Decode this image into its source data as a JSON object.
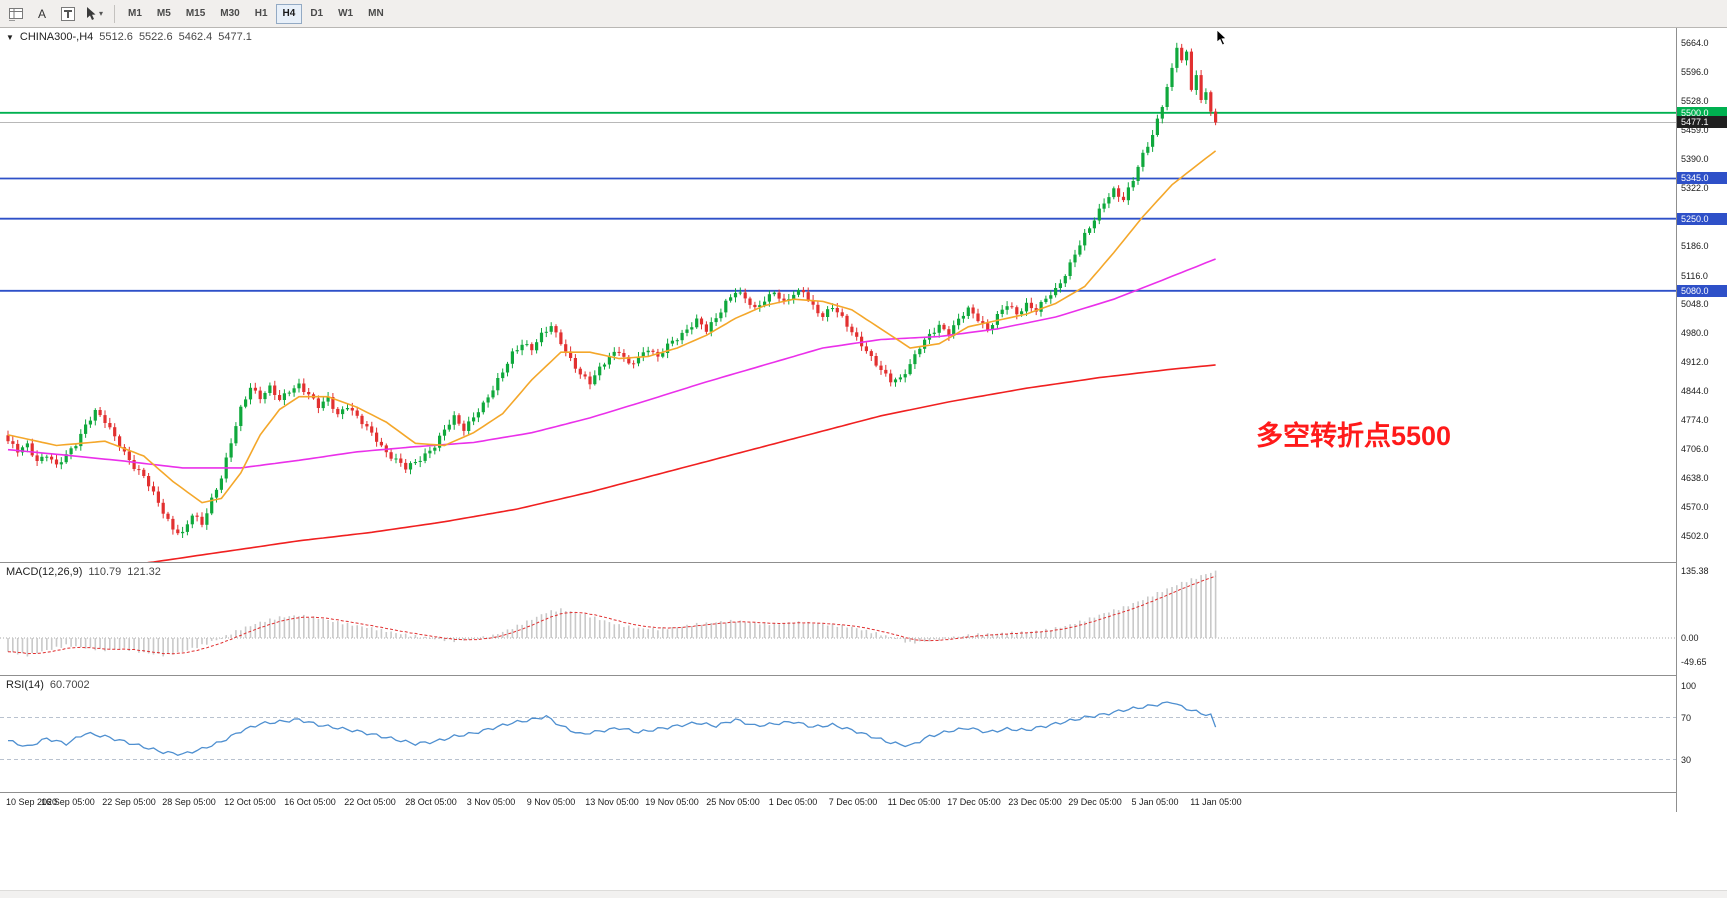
{
  "toolbar": {
    "icons": [
      {
        "name": "indicators-grid-icon"
      },
      {
        "name": "text-label-icon",
        "glyph": "A"
      },
      {
        "name": "text-frame-icon"
      },
      {
        "name": "cursor-tool-icon",
        "dropdown": "▾"
      }
    ],
    "timeframes": [
      "M1",
      "M5",
      "M15",
      "M30",
      "H1",
      "H4",
      "D1",
      "W1",
      "MN"
    ],
    "active_timeframe": "H4"
  },
  "main_chart": {
    "header": {
      "dropdown_icon": "▼",
      "symbol_period": "CHINA300-,H4",
      "open": "5512.6",
      "high": "5522.6",
      "low": "5462.4",
      "close": "5477.1"
    },
    "annotation": {
      "text": "多空转折点5500",
      "color": "#FF1A1A"
    }
  },
  "macd_panel": {
    "header_label": "MACD(12,26,9)",
    "value1": "110.79",
    "value2": "121.32"
  },
  "rsi_panel": {
    "header_label": "RSI(14)",
    "value": "60.7002"
  },
  "chart_data": {
    "type": "candlestick",
    "title": "CHINA300-,H4",
    "bars": 250,
    "price_range": [
      4440,
      5700
    ],
    "current_price": 5477.1,
    "last_ohlc": {
      "open": 5512.6,
      "high": 5522.6,
      "low": 5462.4,
      "close": 5477.1
    },
    "colors": {
      "up": "#0FA83C",
      "down": "#E23030",
      "ma_fast": "#F4A72A",
      "ma_mid": "#EA30EA",
      "ma_slow": "#F02020",
      "hline_green": "#00B050",
      "hline_blue": "#2E50C8",
      "macd_hist": "#C9C9C9",
      "macd_signal": "#E03030",
      "rsi_line": "#4E8FD0",
      "current_price_line": "#B8B8B8"
    },
    "hlines": [
      {
        "price": 5500.0,
        "color": "#00B050"
      },
      {
        "price": 5345.0,
        "color": "#2E50C8"
      },
      {
        "price": 5250.0,
        "color": "#2E50C8"
      },
      {
        "price": 5080.0,
        "color": "#2E50C8"
      }
    ],
    "y_ticks": [
      "5664.0",
      "5596.0",
      "5528.0",
      "5459.0",
      "5390.0",
      "5322.0",
      "5186.0",
      "5116.0",
      "5048.0",
      "4980.0",
      "4912.0",
      "4844.0",
      "4774.0",
      "4706.0",
      "4638.0",
      "4570.0",
      "4502.0"
    ],
    "y_badges": [
      {
        "label": "5500.0",
        "price": 5500.0,
        "bg": "#00B050"
      },
      {
        "label": "5477.1",
        "price": 5477.1,
        "bg": "#202020"
      },
      {
        "label": "5345.0",
        "price": 5345.0,
        "bg": "#2E50C8"
      },
      {
        "label": "5250.0",
        "price": 5250.0,
        "bg": "#2E50C8"
      },
      {
        "label": "5080.0",
        "price": 5080.0,
        "bg": "#2E50C8"
      }
    ],
    "x_labels": [
      "10 Sep 2020",
      "16 Sep 05:00",
      "22 Sep 05:00",
      "28 Sep 05:00",
      "12 Oct 05:00",
      "16 Oct 05:00",
      "22 Oct 05:00",
      "28 Oct 05:00",
      "3 Nov 05:00",
      "9 Nov 05:00",
      "13 Nov 05:00",
      "19 Nov 05:00",
      "25 Nov 05:00",
      "1 Dec 05:00",
      "7 Dec 05:00",
      "11 Dec 05:00",
      "17 Dec 05:00",
      "23 Dec 05:00",
      "29 Dec 05:00",
      "5 Jan 05:00",
      "11 Jan 05:00"
    ],
    "close_anchors": [
      [
        0,
        4725
      ],
      [
        2,
        4700
      ],
      [
        4,
        4715
      ],
      [
        6,
        4680
      ],
      [
        8,
        4695
      ],
      [
        10,
        4665
      ],
      [
        12,
        4690
      ],
      [
        14,
        4720
      ],
      [
        16,
        4765
      ],
      [
        18,
        4795
      ],
      [
        20,
        4770
      ],
      [
        22,
        4735
      ],
      [
        24,
        4700
      ],
      [
        26,
        4665
      ],
      [
        28,
        4640
      ],
      [
        30,
        4600
      ],
      [
        32,
        4560
      ],
      [
        34,
        4520
      ],
      [
        36,
        4505
      ],
      [
        38,
        4550
      ],
      [
        40,
        4530
      ],
      [
        42,
        4590
      ],
      [
        44,
        4640
      ],
      [
        46,
        4720
      ],
      [
        48,
        4800
      ],
      [
        50,
        4855
      ],
      [
        52,
        4830
      ],
      [
        54,
        4850
      ],
      [
        56,
        4820
      ],
      [
        58,
        4845
      ],
      [
        60,
        4860
      ],
      [
        62,
        4835
      ],
      [
        64,
        4805
      ],
      [
        66,
        4825
      ],
      [
        68,
        4790
      ],
      [
        70,
        4810
      ],
      [
        72,
        4780
      ],
      [
        74,
        4755
      ],
      [
        76,
        4730
      ],
      [
        78,
        4700
      ],
      [
        80,
        4680
      ],
      [
        82,
        4660
      ],
      [
        84,
        4675
      ],
      [
        86,
        4695
      ],
      [
        88,
        4715
      ],
      [
        90,
        4750
      ],
      [
        92,
        4780
      ],
      [
        94,
        4755
      ],
      [
        96,
        4785
      ],
      [
        98,
        4810
      ],
      [
        100,
        4845
      ],
      [
        102,
        4890
      ],
      [
        104,
        4935
      ],
      [
        106,
        4955
      ],
      [
        108,
        4940
      ],
      [
        110,
        4975
      ],
      [
        112,
        5000
      ],
      [
        114,
        4960
      ],
      [
        116,
        4915
      ],
      [
        118,
        4880
      ],
      [
        120,
        4865
      ],
      [
        122,
        4900
      ],
      [
        124,
        4925
      ],
      [
        126,
        4935
      ],
      [
        128,
        4905
      ],
      [
        130,
        4925
      ],
      [
        132,
        4945
      ],
      [
        134,
        4920
      ],
      [
        136,
        4950
      ],
      [
        138,
        4970
      ],
      [
        140,
        4990
      ],
      [
        142,
        5010
      ],
      [
        144,
        4985
      ],
      [
        146,
        5015
      ],
      [
        148,
        5055
      ],
      [
        150,
        5080
      ],
      [
        152,
        5060
      ],
      [
        154,
        5035
      ],
      [
        156,
        5060
      ],
      [
        158,
        5080
      ],
      [
        160,
        5050
      ],
      [
        162,
        5070
      ],
      [
        164,
        5080
      ],
      [
        166,
        5045
      ],
      [
        168,
        5020
      ],
      [
        170,
        5040
      ],
      [
        172,
        5015
      ],
      [
        174,
        4985
      ],
      [
        176,
        4955
      ],
      [
        178,
        4920
      ],
      [
        180,
        4890
      ],
      [
        182,
        4870
      ],
      [
        184,
        4875
      ],
      [
        186,
        4905
      ],
      [
        188,
        4945
      ],
      [
        190,
        4975
      ],
      [
        192,
        5000
      ],
      [
        194,
        4980
      ],
      [
        196,
        5010
      ],
      [
        198,
        5035
      ],
      [
        200,
        5015
      ],
      [
        202,
        4990
      ],
      [
        204,
        5020
      ],
      [
        206,
        5045
      ],
      [
        208,
        5025
      ],
      [
        210,
        5050
      ],
      [
        212,
        5035
      ],
      [
        214,
        5060
      ],
      [
        216,
        5080
      ],
      [
        218,
        5120
      ],
      [
        220,
        5170
      ],
      [
        222,
        5210
      ],
      [
        224,
        5245
      ],
      [
        226,
        5290
      ],
      [
        228,
        5320
      ],
      [
        230,
        5295
      ],
      [
        232,
        5340
      ],
      [
        234,
        5400
      ],
      [
        236,
        5450
      ],
      [
        238,
        5520
      ],
      [
        240,
        5600
      ],
      [
        241,
        5655
      ],
      [
        242,
        5620
      ],
      [
        243,
        5640
      ],
      [
        244,
        5560
      ],
      [
        245,
        5590
      ],
      [
        246,
        5530
      ],
      [
        247,
        5555
      ],
      [
        248,
        5500
      ],
      [
        249,
        5477.1
      ]
    ],
    "ma_fast_anchors": [
      [
        0,
        4740
      ],
      [
        10,
        4715
      ],
      [
        20,
        4725
      ],
      [
        28,
        4690
      ],
      [
        34,
        4630
      ],
      [
        40,
        4580
      ],
      [
        44,
        4590
      ],
      [
        48,
        4650
      ],
      [
        52,
        4740
      ],
      [
        56,
        4800
      ],
      [
        60,
        4830
      ],
      [
        66,
        4830
      ],
      [
        72,
        4805
      ],
      [
        78,
        4770
      ],
      [
        84,
        4720
      ],
      [
        90,
        4715
      ],
      [
        96,
        4745
      ],
      [
        102,
        4790
      ],
      [
        108,
        4870
      ],
      [
        114,
        4935
      ],
      [
        120,
        4935
      ],
      [
        126,
        4920
      ],
      [
        132,
        4925
      ],
      [
        138,
        4945
      ],
      [
        144,
        4975
      ],
      [
        150,
        5015
      ],
      [
        156,
        5045
      ],
      [
        162,
        5060
      ],
      [
        168,
        5055
      ],
      [
        174,
        5035
      ],
      [
        180,
        4990
      ],
      [
        186,
        4945
      ],
      [
        192,
        4955
      ],
      [
        198,
        4995
      ],
      [
        204,
        5010
      ],
      [
        210,
        5025
      ],
      [
        216,
        5050
      ],
      [
        222,
        5090
      ],
      [
        228,
        5170
      ],
      [
        234,
        5255
      ],
      [
        240,
        5330
      ],
      [
        245,
        5375
      ],
      [
        249,
        5410
      ]
    ],
    "ma_mid_anchors": [
      [
        0,
        4705
      ],
      [
        12,
        4692
      ],
      [
        24,
        4678
      ],
      [
        36,
        4662
      ],
      [
        48,
        4662
      ],
      [
        60,
        4680
      ],
      [
        72,
        4700
      ],
      [
        84,
        4712
      ],
      [
        96,
        4722
      ],
      [
        108,
        4745
      ],
      [
        120,
        4780
      ],
      [
        132,
        4822
      ],
      [
        144,
        4865
      ],
      [
        156,
        4905
      ],
      [
        168,
        4945
      ],
      [
        180,
        4965
      ],
      [
        192,
        4972
      ],
      [
        204,
        4990
      ],
      [
        216,
        5018
      ],
      [
        228,
        5060
      ],
      [
        238,
        5105
      ],
      [
        249,
        5155
      ]
    ],
    "ma_slow_anchors": [
      [
        0,
        4395
      ],
      [
        30,
        4440
      ],
      [
        60,
        4490
      ],
      [
        75,
        4510
      ],
      [
        90,
        4535
      ],
      [
        105,
        4565
      ],
      [
        120,
        4605
      ],
      [
        135,
        4650
      ],
      [
        150,
        4695
      ],
      [
        165,
        4740
      ],
      [
        180,
        4785
      ],
      [
        195,
        4820
      ],
      [
        210,
        4850
      ],
      [
        225,
        4875
      ],
      [
        240,
        4895
      ],
      [
        249,
        4905
      ]
    ],
    "macd": {
      "params": "12,26,9",
      "display_values": [
        110.79,
        121.32
      ],
      "value_range": [
        -75,
        152
      ],
      "axis_ticks": [
        "135.38",
        "0.00",
        "-49.65"
      ],
      "anchors": [
        [
          0,
          -28
        ],
        [
          4,
          -35
        ],
        [
          8,
          -25
        ],
        [
          12,
          -15
        ],
        [
          16,
          -20
        ],
        [
          20,
          -25
        ],
        [
          24,
          -22
        ],
        [
          28,
          -30
        ],
        [
          32,
          -35
        ],
        [
          36,
          -28
        ],
        [
          40,
          -15
        ],
        [
          44,
          0
        ],
        [
          48,
          18
        ],
        [
          52,
          32
        ],
        [
          56,
          42
        ],
        [
          60,
          46
        ],
        [
          64,
          40
        ],
        [
          68,
          32
        ],
        [
          72,
          25
        ],
        [
          76,
          18
        ],
        [
          80,
          10
        ],
        [
          84,
          4
        ],
        [
          88,
          -2
        ],
        [
          92,
          -6
        ],
        [
          96,
          -3
        ],
        [
          100,
          5
        ],
        [
          104,
          20
        ],
        [
          108,
          38
        ],
        [
          111,
          52
        ],
        [
          114,
          58
        ],
        [
          118,
          50
        ],
        [
          122,
          38
        ],
        [
          126,
          26
        ],
        [
          130,
          20
        ],
        [
          134,
          18
        ],
        [
          138,
          22
        ],
        [
          142,
          28
        ],
        [
          146,
          32
        ],
        [
          150,
          35
        ],
        [
          154,
          30
        ],
        [
          158,
          28
        ],
        [
          162,
          32
        ],
        [
          166,
          30
        ],
        [
          170,
          26
        ],
        [
          174,
          22
        ],
        [
          178,
          12
        ],
        [
          182,
          2
        ],
        [
          186,
          -10
        ],
        [
          190,
          -6
        ],
        [
          194,
          0
        ],
        [
          198,
          6
        ],
        [
          202,
          8
        ],
        [
          206,
          10
        ],
        [
          210,
          12
        ],
        [
          214,
          16
        ],
        [
          218,
          24
        ],
        [
          222,
          36
        ],
        [
          226,
          50
        ],
        [
          230,
          62
        ],
        [
          234,
          78
        ],
        [
          238,
          95
        ],
        [
          242,
          112
        ],
        [
          245,
          122
        ],
        [
          247,
          130
        ],
        [
          249,
          135
        ]
      ]
    },
    "rsi": {
      "period": 14,
      "display_value": 60.7002,
      "levels": [
        70,
        30
      ],
      "axis_ticks": [
        "100",
        "70",
        "30"
      ],
      "anchors": [
        [
          0,
          48
        ],
        [
          4,
          42
        ],
        [
          8,
          50
        ],
        [
          12,
          45
        ],
        [
          16,
          55
        ],
        [
          20,
          52
        ],
        [
          24,
          47
        ],
        [
          28,
          42
        ],
        [
          32,
          37
        ],
        [
          36,
          35
        ],
        [
          40,
          40
        ],
        [
          44,
          47
        ],
        [
          48,
          57
        ],
        [
          52,
          64
        ],
        [
          56,
          66
        ],
        [
          60,
          68
        ],
        [
          64,
          63
        ],
        [
          68,
          60
        ],
        [
          72,
          57
        ],
        [
          76,
          53
        ],
        [
          80,
          49
        ],
        [
          84,
          45
        ],
        [
          88,
          47
        ],
        [
          92,
          52
        ],
        [
          96,
          55
        ],
        [
          100,
          60
        ],
        [
          104,
          65
        ],
        [
          108,
          68
        ],
        [
          111,
          71
        ],
        [
          114,
          62
        ],
        [
          118,
          54
        ],
        [
          122,
          57
        ],
        [
          126,
          60
        ],
        [
          130,
          56
        ],
        [
          134,
          59
        ],
        [
          138,
          62
        ],
        [
          142,
          65
        ],
        [
          146,
          62
        ],
        [
          150,
          68
        ],
        [
          154,
          62
        ],
        [
          158,
          64
        ],
        [
          162,
          66
        ],
        [
          166,
          61
        ],
        [
          170,
          63
        ],
        [
          174,
          58
        ],
        [
          178,
          52
        ],
        [
          182,
          46
        ],
        [
          186,
          43
        ],
        [
          190,
          52
        ],
        [
          194,
          57
        ],
        [
          198,
          60
        ],
        [
          202,
          56
        ],
        [
          206,
          59
        ],
        [
          210,
          58
        ],
        [
          214,
          62
        ],
        [
          218,
          66
        ],
        [
          222,
          70
        ],
        [
          226,
          73
        ],
        [
          230,
          77
        ],
        [
          234,
          80
        ],
        [
          238,
          83
        ],
        [
          240,
          85
        ],
        [
          242,
          80
        ],
        [
          244,
          77
        ],
        [
          246,
          74
        ],
        [
          248,
          72
        ],
        [
          249,
          60.7
        ]
      ]
    }
  }
}
